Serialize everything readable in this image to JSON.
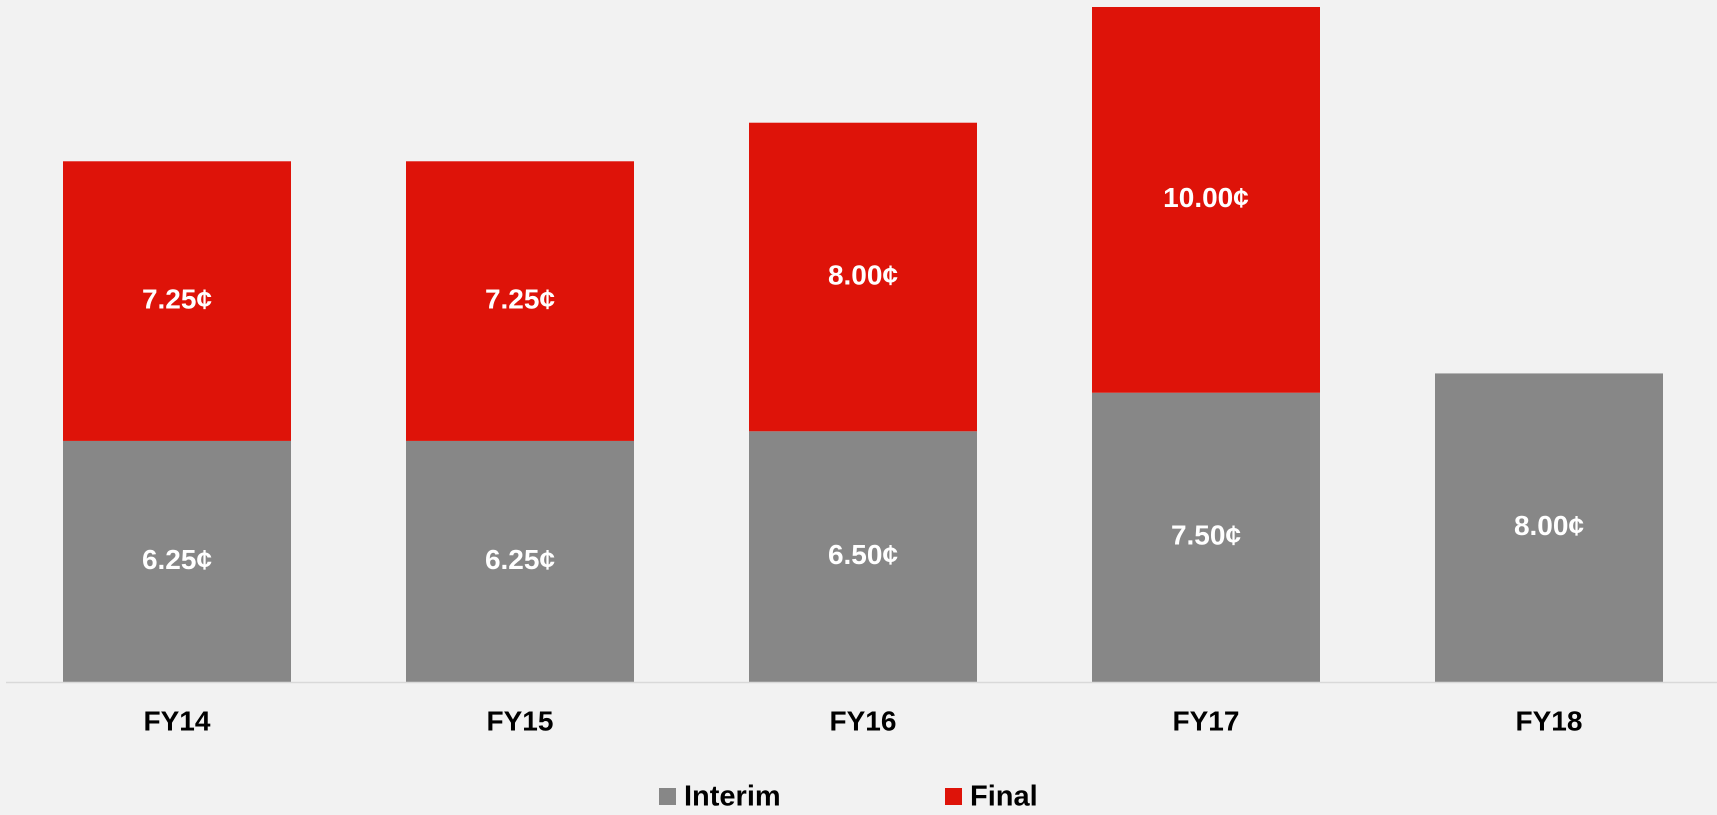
{
  "chart_data": {
    "type": "stacked_bar",
    "categories": [
      "FY14",
      "FY15",
      "FY16",
      "FY17",
      "FY18"
    ],
    "series": [
      {
        "name": "Interim",
        "color": "#878787",
        "values": [
          6.25,
          6.25,
          6.5,
          7.5,
          8.0
        ],
        "value_labels": [
          "6.25¢",
          "6.25¢",
          "6.50¢",
          "7.50¢",
          "8.00¢"
        ]
      },
      {
        "name": "Final",
        "color": "#de1309",
        "values": [
          7.25,
          7.25,
          8.0,
          10.0,
          null
        ],
        "value_labels": [
          "7.25¢",
          "7.25¢",
          "8.00¢",
          "10.00¢",
          null
        ]
      }
    ],
    "legend": "bottom"
  }
}
